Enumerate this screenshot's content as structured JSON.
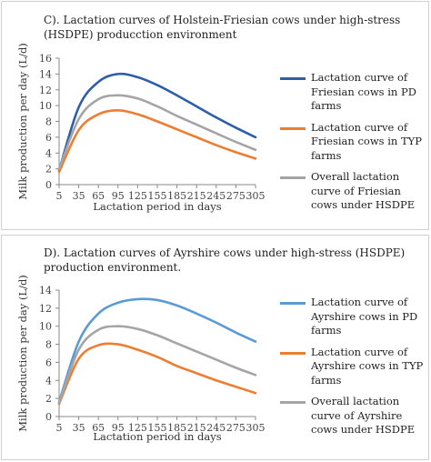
{
  "chart_data": [
    {
      "type": "line",
      "title": "C). Lactation curves of Holstein-Friesian cows under high-stress (HSDPE) producction environment",
      "xlabel": "Lactation period in days",
      "ylabel": "Milk production per day (L/d)",
      "categories": [
        "5",
        "35",
        "65",
        "95",
        "125",
        "155",
        "185",
        "215",
        "245",
        "275",
        "305"
      ],
      "ylim": [
        0,
        16
      ],
      "yticks": [
        0,
        2,
        4,
        6,
        8,
        10,
        12,
        14,
        16
      ],
      "grid": false,
      "legend_position": "right",
      "series": [
        {
          "name": "Lactation curve of Friesian cows in PD farms",
          "color": "#2e5ea8",
          "values": [
            1.8,
            9.8,
            13.0,
            14.0,
            13.6,
            12.6,
            11.3,
            9.9,
            8.5,
            7.2,
            6.0
          ]
        },
        {
          "name": "Lactation curve of Friesian cows in TYP farms",
          "color": "#ed7d31",
          "values": [
            1.6,
            6.9,
            8.9,
            9.4,
            8.9,
            8.0,
            7.0,
            6.0,
            5.0,
            4.1,
            3.3
          ]
        },
        {
          "name": "Overall lactation curve of Friesian cows under HSDPE",
          "color": "#a5a5a5",
          "values": [
            2.0,
            8.3,
            10.8,
            11.3,
            10.9,
            9.9,
            8.7,
            7.6,
            6.5,
            5.4,
            4.4
          ]
        }
      ]
    },
    {
      "type": "line",
      "title": "D). Lactation curves of Ayrshire cows under high-stress (HSDPE) production environment.",
      "xlabel": "Lactation period in days",
      "ylabel": "Milk production per day (L/d)",
      "categories": [
        "5",
        "35",
        "65",
        "95",
        "125",
        "155",
        "185",
        "215",
        "245",
        "275",
        "305"
      ],
      "ylim": [
        0,
        14
      ],
      "yticks": [
        0,
        2,
        4,
        6,
        8,
        10,
        12,
        14
      ],
      "grid": false,
      "legend_position": "right",
      "series": [
        {
          "name": "Lactation curve of Ayrshire cows in PD farms",
          "color": "#5b9bd5",
          "values": [
            1.6,
            8.3,
            11.4,
            12.6,
            13.0,
            12.9,
            12.3,
            11.4,
            10.4,
            9.3,
            8.3
          ]
        },
        {
          "name": "Lactation curve of Ayrshire cows in TYP farms",
          "color": "#ed7d31",
          "values": [
            1.4,
            6.4,
            7.9,
            8.0,
            7.4,
            6.6,
            5.6,
            4.8,
            4.0,
            3.3,
            2.6
          ]
        },
        {
          "name": "Overall lactation curve of Ayrshire cows under HSDPE",
          "color": "#a5a5a5",
          "values": [
            1.5,
            7.4,
            9.6,
            10.0,
            9.7,
            9.0,
            8.1,
            7.2,
            6.3,
            5.4,
            4.6
          ]
        }
      ]
    }
  ]
}
